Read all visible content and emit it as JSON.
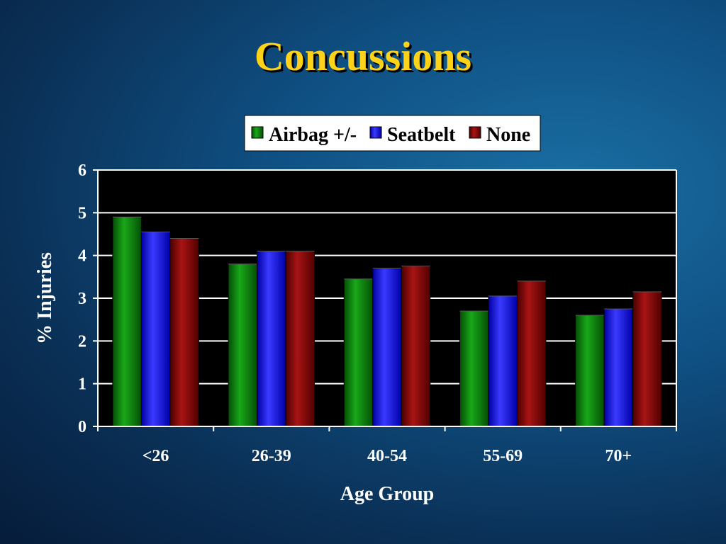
{
  "slide": {
    "title": "Concussions"
  },
  "chart_data": {
    "type": "bar",
    "title": "",
    "xlabel": "Age Group",
    "ylabel": "% Injuries",
    "ylim": [
      0,
      6
    ],
    "yticks": [
      "0",
      "1",
      "2",
      "3",
      "4",
      "5",
      "6"
    ],
    "categories": [
      "<26",
      "26-39",
      "40-54",
      "55-69",
      "70+"
    ],
    "series": [
      {
        "name": "Airbag +/-",
        "color": "#0f8a0f",
        "values": [
          4.9,
          3.8,
          3.45,
          2.7,
          2.6
        ]
      },
      {
        "name": "Seatbelt",
        "color": "#1414f0",
        "values": [
          4.55,
          4.1,
          3.7,
          3.05,
          2.75
        ]
      },
      {
        "name": "None",
        "color": "#8c0a0a",
        "values": [
          4.4,
          4.1,
          3.75,
          3.4,
          3.15
        ]
      }
    ],
    "grid": true,
    "plot_background": "#000000",
    "legend_position": "top-center"
  }
}
